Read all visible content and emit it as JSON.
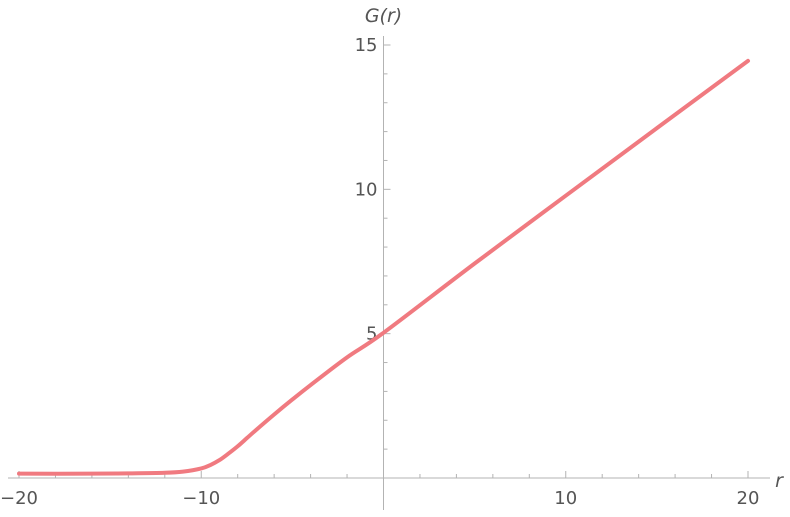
{
  "chart_data": {
    "type": "line",
    "title": "",
    "xlabel": "r",
    "ylabel": "G(r)",
    "xlim": [
      -20,
      20
    ],
    "ylim": [
      0,
      15
    ],
    "grid": false,
    "legend": "none",
    "x_ticks": [
      -20,
      -10,
      10,
      20
    ],
    "x_tick_labels": [
      "−20",
      "−10",
      "10",
      "20"
    ],
    "y_ticks": [
      5,
      10,
      15
    ],
    "y_tick_labels": [
      "5",
      "10",
      "15"
    ],
    "series": [
      {
        "color": "#f07a80",
        "x": [
          -20,
          -16,
          -14,
          -12,
          -11,
          -10,
          -9.5,
          -9,
          -8.5,
          -8,
          -7.5,
          -7,
          -6,
          -5,
          -4,
          -2,
          0,
          5,
          10,
          15,
          20
        ],
        "y": [
          0.15,
          0.15,
          0.16,
          0.18,
          0.22,
          0.33,
          0.45,
          0.62,
          0.85,
          1.1,
          1.38,
          1.66,
          2.2,
          2.72,
          3.22,
          4.18,
          5.03,
          7.43,
          9.78,
          12.12,
          14.45
        ]
      }
    ]
  }
}
